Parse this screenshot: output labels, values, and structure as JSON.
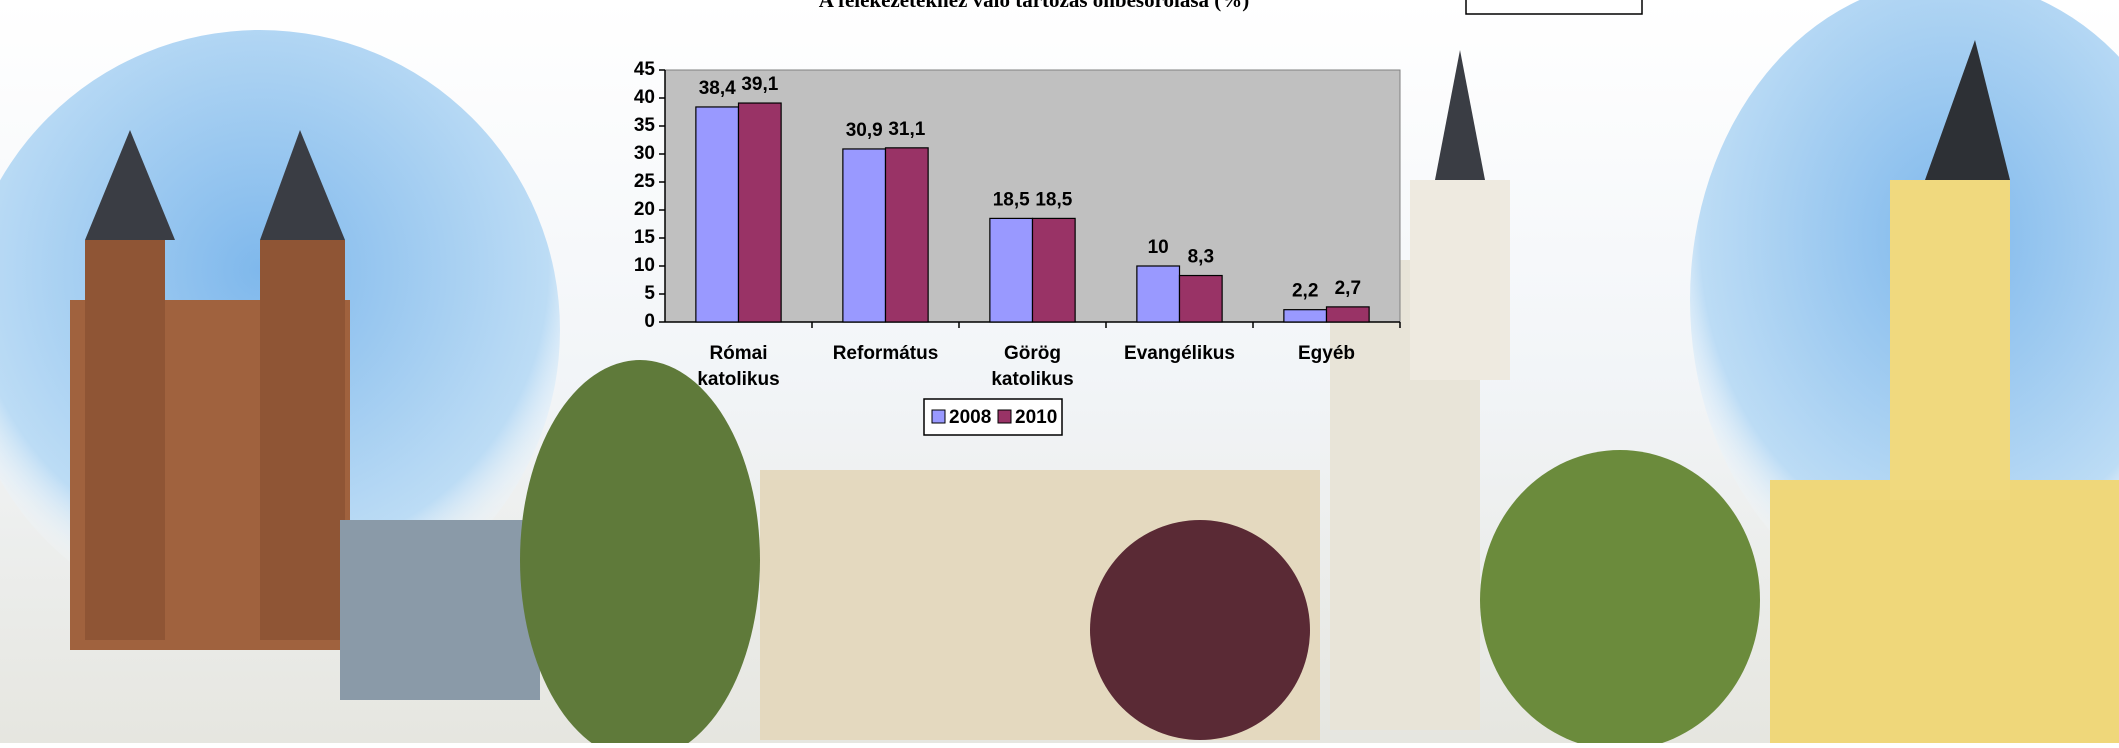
{
  "chart_data": {
    "type": "bar",
    "title": "A felekezetekhez való tartozás önbesorolása (%)",
    "categories": [
      "Római katolikus",
      "Református",
      "Görög katolikus",
      "Evangélikus",
      "Egyéb"
    ],
    "series": [
      {
        "name": "2008",
        "color": "#9999ff",
        "values": [
          38.4,
          30.9,
          18.5,
          10,
          2.2
        ],
        "value_labels": [
          "38,4",
          "30,9",
          "18,5",
          "10",
          "2,2"
        ]
      },
      {
        "name": "2010",
        "color": "#993366",
        "values": [
          39.1,
          31.1,
          18.5,
          8.3,
          2.7
        ],
        "value_labels": [
          "39,1",
          "31,1",
          "18,5",
          "8,3",
          "2,7"
        ]
      }
    ],
    "ylim": [
      0,
      45
    ],
    "yticks": [
      0,
      5,
      10,
      15,
      20,
      25,
      30,
      35,
      40,
      45
    ],
    "plot_background": "#c0c0c0"
  }
}
